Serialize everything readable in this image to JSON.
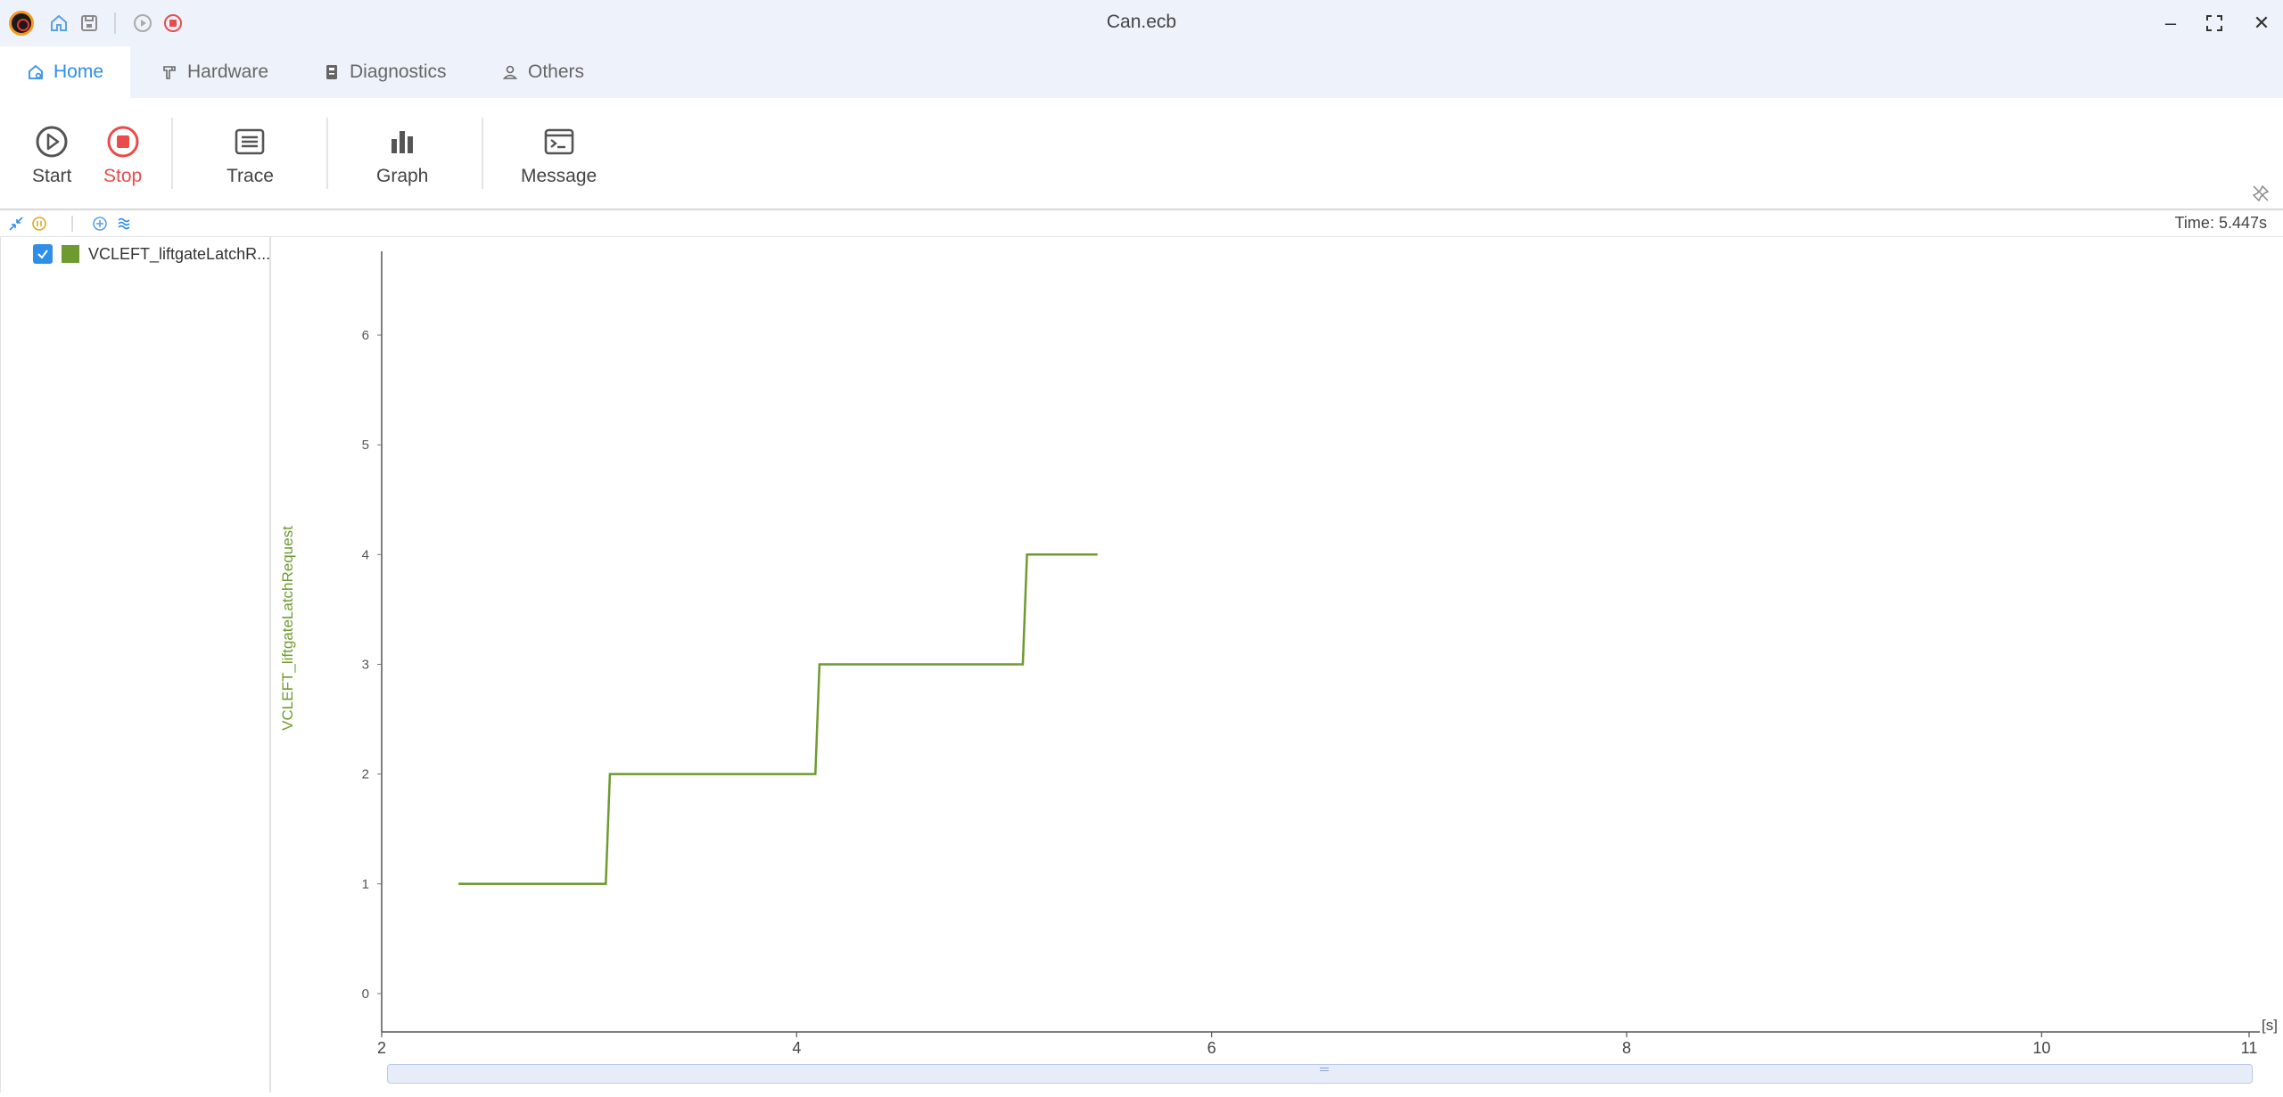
{
  "window": {
    "title": "Can.ecb"
  },
  "tabs": [
    {
      "label": "Home",
      "icon": "home-icon",
      "active": true
    },
    {
      "label": "Hardware",
      "icon": "hammer-icon",
      "active": false
    },
    {
      "label": "Diagnostics",
      "icon": "device-icon",
      "active": false
    },
    {
      "label": "Others",
      "icon": "user-icon",
      "active": false
    }
  ],
  "ribbon": {
    "start": "Start",
    "stop": "Stop",
    "trace": "Trace",
    "graph": "Graph",
    "message": "Message"
  },
  "graph_toolbar": {
    "time": "Time: 5.447s"
  },
  "signals": [
    {
      "name": "VCLEFT_liftgateLatchR...",
      "checked": true,
      "color": "#6e9a2f"
    }
  ],
  "colors": {
    "accent": "#2f8ee8",
    "stop": "#e84c4c",
    "series": "#6e9a2f"
  },
  "chart_data": {
    "type": "line",
    "title": "",
    "xlabel": "",
    "x_unit": "[s]",
    "ylabel": "VCLEFT_liftgateLatchRequest",
    "xlim": [
      2,
      11
    ],
    "ylim": [
      -0.35,
      6.65
    ],
    "x_ticks": [
      2,
      4,
      6,
      8,
      10,
      11
    ],
    "y_ticks": [
      0,
      1,
      2,
      3,
      4,
      5,
      6
    ],
    "series": [
      {
        "x": [
          2.37,
          3.08,
          3.1,
          4.09,
          4.11,
          5.09,
          5.11,
          5.45
        ],
        "y": [
          1,
          1,
          2,
          2,
          3,
          3,
          4,
          4
        ],
        "step": true
      }
    ]
  }
}
